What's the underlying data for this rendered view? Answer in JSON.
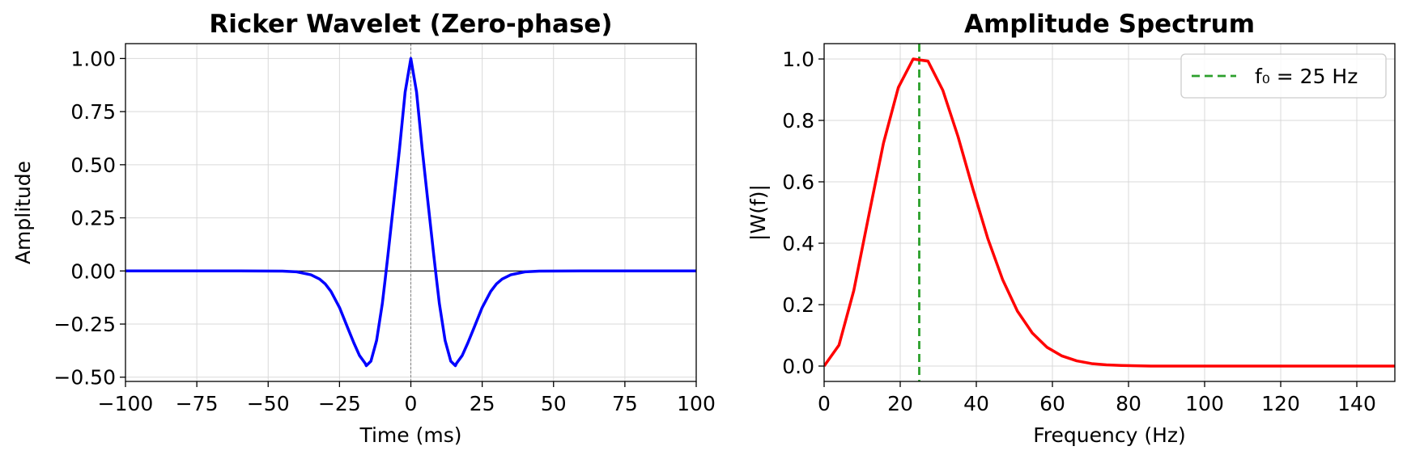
{
  "chart_data": [
    {
      "type": "line",
      "title": "Ricker Wavelet (Zero-phase)",
      "xlabel": "Time (ms)",
      "ylabel": "Amplitude",
      "xlim": [
        -100,
        100
      ],
      "ylim": [
        -0.52,
        1.07
      ],
      "xticks": [
        -100,
        -75,
        -50,
        -25,
        0,
        25,
        50,
        75,
        100
      ],
      "xtick_labels": [
        "−100",
        "−75",
        "−50",
        "−25",
        "0",
        "25",
        "50",
        "75",
        "100"
      ],
      "yticks": [
        -0.5,
        -0.25,
        0,
        0.25,
        0.5,
        0.75,
        1.0
      ],
      "ytick_labels": [
        "−0.50",
        "−0.25",
        "0.00",
        "0.25",
        "0.50",
        "0.75",
        "1.00"
      ],
      "grid": true,
      "series": [
        {
          "color": "#0000ff",
          "x": [
            -100,
            -60,
            -45,
            -40,
            -35,
            -32,
            -30,
            -28,
            -25,
            -22,
            -20,
            -18,
            -16,
            -15.6,
            -14,
            -12,
            -10,
            -9,
            -8,
            -6,
            -4,
            -2,
            0,
            2,
            4,
            6,
            8,
            9,
            10,
            12,
            14,
            15.6,
            16,
            18,
            20,
            22,
            25,
            28,
            30,
            32,
            35,
            40,
            45,
            60,
            100
          ],
          "y": [
            0,
            0,
            -0.001,
            -0.004,
            -0.018,
            -0.038,
            -0.061,
            -0.096,
            -0.172,
            -0.272,
            -0.338,
            -0.398,
            -0.435,
            -0.446,
            -0.425,
            -0.327,
            -0.154,
            -0.04,
            0.078,
            0.323,
            0.571,
            0.842,
            1.0,
            0.842,
            0.571,
            0.323,
            0.078,
            -0.04,
            -0.154,
            -0.327,
            -0.425,
            -0.446,
            -0.435,
            -0.398,
            -0.338,
            -0.272,
            -0.172,
            -0.096,
            -0.061,
            -0.038,
            -0.018,
            -0.004,
            -0.001,
            0,
            0
          ]
        }
      ],
      "reference_lines": [
        {
          "orientation": "horizontal",
          "value": 0,
          "color": "#000000",
          "style": "solid"
        },
        {
          "orientation": "vertical",
          "value": 0,
          "color": "#808080",
          "style": "dotted"
        }
      ]
    },
    {
      "type": "line",
      "title": "Amplitude Spectrum",
      "xlabel": "Frequency (Hz)",
      "ylabel": "|W(f)|",
      "xlim": [
        0,
        150
      ],
      "ylim": [
        -0.05,
        1.05
      ],
      "xticks": [
        0,
        20,
        40,
        60,
        80,
        100,
        120,
        140
      ],
      "xtick_labels": [
        "0",
        "20",
        "40",
        "60",
        "80",
        "100",
        "120",
        "140"
      ],
      "yticks": [
        0,
        0.2,
        0.4,
        0.6,
        0.8,
        1.0
      ],
      "ytick_labels": [
        "0.0",
        "0.2",
        "0.4",
        "0.6",
        "0.8",
        "1.0"
      ],
      "grid": true,
      "legend_position": "top-right",
      "series": [
        {
          "color": "#ff0000",
          "x": [
            0,
            3.9,
            7.8,
            11.7,
            15.6,
            19.5,
            23.4,
            27.3,
            31.2,
            35.2,
            39.1,
            43.0,
            46.9,
            50.8,
            54.7,
            58.6,
            62.5,
            66.4,
            70.3,
            74.2,
            78.1,
            82.0,
            85.9,
            90,
            100,
            110,
            120,
            130,
            140,
            150
          ],
          "y": [
            0.0,
            0.068,
            0.246,
            0.488,
            0.726,
            0.907,
            1.0,
            0.993,
            0.898,
            0.747,
            0.577,
            0.416,
            0.282,
            0.179,
            0.108,
            0.061,
            0.033,
            0.017,
            0.008,
            0.004,
            0.002,
            0.001,
            0.0,
            0.0,
            0.0,
            0.0,
            0.0,
            0.0,
            0.0,
            0.0
          ]
        }
      ],
      "reference_lines": [
        {
          "orientation": "vertical",
          "value": 25,
          "color": "#2ca02c",
          "style": "dashed",
          "name": "f₀ = 25 Hz"
        }
      ]
    }
  ]
}
